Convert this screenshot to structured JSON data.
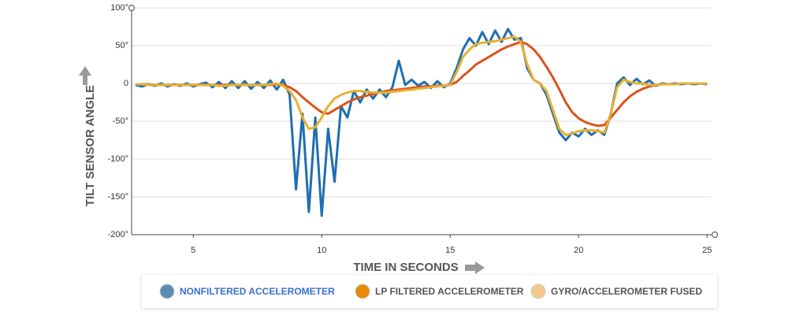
{
  "chart_data": {
    "type": "line",
    "y_label": "TILT SENSOR ANGLE",
    "x_label": "TIME IN SECONDS",
    "xlim": [
      2.6,
      25.3
    ],
    "xticks": [
      5,
      10,
      15,
      20,
      25
    ],
    "ylim": [
      -200,
      100
    ],
    "yticks": [
      {
        "value": -200,
        "label": "-200°"
      },
      {
        "value": -150,
        "label": "-150°"
      },
      {
        "value": -100,
        "label": "-100°"
      },
      {
        "value": -50,
        "label": "-50°"
      },
      {
        "value": 0,
        "label": "0"
      },
      {
        "value": 50,
        "label": "50°"
      },
      {
        "value": 100,
        "label": "100°"
      }
    ],
    "grid": true,
    "x": [
      2.75,
      3,
      3.25,
      3.5,
      3.75,
      4,
      4.25,
      4.5,
      4.75,
      5,
      5.25,
      5.5,
      5.75,
      6,
      6.25,
      6.5,
      6.75,
      7,
      7.25,
      7.5,
      7.75,
      8,
      8.25,
      8.5,
      8.75,
      9,
      9.25,
      9.5,
      9.75,
      10,
      10.25,
      10.5,
      10.75,
      11,
      11.25,
      11.5,
      11.75,
      12,
      12.25,
      12.5,
      12.75,
      13,
      13.25,
      13.5,
      13.75,
      14,
      14.25,
      14.5,
      14.75,
      15,
      15.25,
      15.5,
      15.75,
      16,
      16.25,
      16.5,
      16.75,
      17,
      17.25,
      17.5,
      17.75,
      18,
      18.25,
      18.5,
      18.75,
      19,
      19.25,
      19.5,
      19.75,
      20,
      20.25,
      20.5,
      20.75,
      21,
      21.25,
      21.5,
      21.75,
      22,
      22.25,
      22.5,
      22.75,
      23,
      23.25,
      23.5,
      23.75,
      24,
      24.25,
      24.5,
      24.75,
      25
    ],
    "series": [
      {
        "name": "NONFILTERED ACCELEROMETER",
        "color": "#1f6fb0",
        "legend_color": "#5a8db5",
        "text_color": "#3b6fd0",
        "values": [
          -2,
          -4,
          -1,
          -3,
          0,
          -4,
          -1,
          -3,
          0,
          -4,
          -1,
          1,
          -5,
          2,
          -6,
          3,
          -6,
          3,
          -7,
          2,
          -6,
          4,
          -8,
          5,
          -15,
          -140,
          -40,
          -170,
          -45,
          -175,
          -60,
          -130,
          -30,
          -45,
          -10,
          -25,
          -8,
          -20,
          -8,
          -18,
          -5,
          30,
          -2,
          5,
          -3,
          2,
          -6,
          3,
          -5,
          0,
          20,
          45,
          60,
          50,
          68,
          52,
          70,
          55,
          72,
          58,
          60,
          20,
          5,
          0,
          -15,
          -40,
          -65,
          -75,
          -65,
          -70,
          -60,
          -68,
          -62,
          -68,
          -40,
          0,
          8,
          -2,
          6,
          -1,
          4,
          -3,
          0,
          -1,
          0,
          -1,
          0,
          -1,
          0,
          -1
        ]
      },
      {
        "name": "LP FILTERED ACCELEROMETER",
        "color": "#d9541e",
        "legend_color": "#e8890c",
        "text_color": "#555555",
        "values": [
          -1,
          -1,
          -1,
          -2,
          -2,
          -2,
          -2,
          -2,
          -2,
          -2,
          -2,
          -2,
          -2,
          -2,
          -2,
          -2,
          -2,
          -2,
          -2,
          -2,
          -2,
          -2,
          -1,
          -2,
          -5,
          -10,
          -18,
          -25,
          -32,
          -38,
          -40,
          -35,
          -30,
          -25,
          -21,
          -18,
          -16,
          -14,
          -12,
          -10,
          -9,
          -8,
          -7,
          -6,
          -5,
          -4,
          -4,
          -3,
          -3,
          -2,
          2,
          10,
          17,
          25,
          30,
          35,
          40,
          45,
          49,
          52,
          55,
          52,
          45,
          35,
          22,
          8,
          -8,
          -25,
          -38,
          -46,
          -51,
          -54,
          -56,
          -55,
          -45,
          -35,
          -25,
          -17,
          -11,
          -7,
          -4,
          -2,
          -1,
          -1,
          -1,
          0,
          0,
          0,
          0,
          0
        ]
      },
      {
        "name": "GYRO/ACCELEROMETER FUSED",
        "color": "#e8b030",
        "legend_color": "#f5c98a",
        "text_color": "#555555",
        "values": [
          -1,
          -1,
          -2,
          -2,
          -2,
          -2,
          -2,
          -2,
          -2,
          -2,
          -2,
          -2,
          -2,
          -3,
          -3,
          -2,
          -2,
          -2,
          -2,
          -2,
          -2,
          -1,
          0,
          -3,
          -10,
          -22,
          -45,
          -60,
          -58,
          -45,
          -30,
          -20,
          -15,
          -12,
          -10,
          -10,
          -11,
          -12,
          -12,
          -12,
          -11,
          -10,
          -9,
          -8,
          -7,
          -6,
          -5,
          -4,
          -3,
          -2,
          15,
          35,
          45,
          52,
          54,
          55,
          56,
          58,
          60,
          62,
          55,
          25,
          5,
          0,
          -10,
          -35,
          -60,
          -68,
          -66,
          -63,
          -62,
          -62,
          -63,
          -65,
          -40,
          -5,
          5,
          2,
          0,
          0,
          -2,
          -2,
          -1,
          -1,
          -1,
          0,
          0,
          0,
          0,
          0
        ]
      }
    ]
  }
}
